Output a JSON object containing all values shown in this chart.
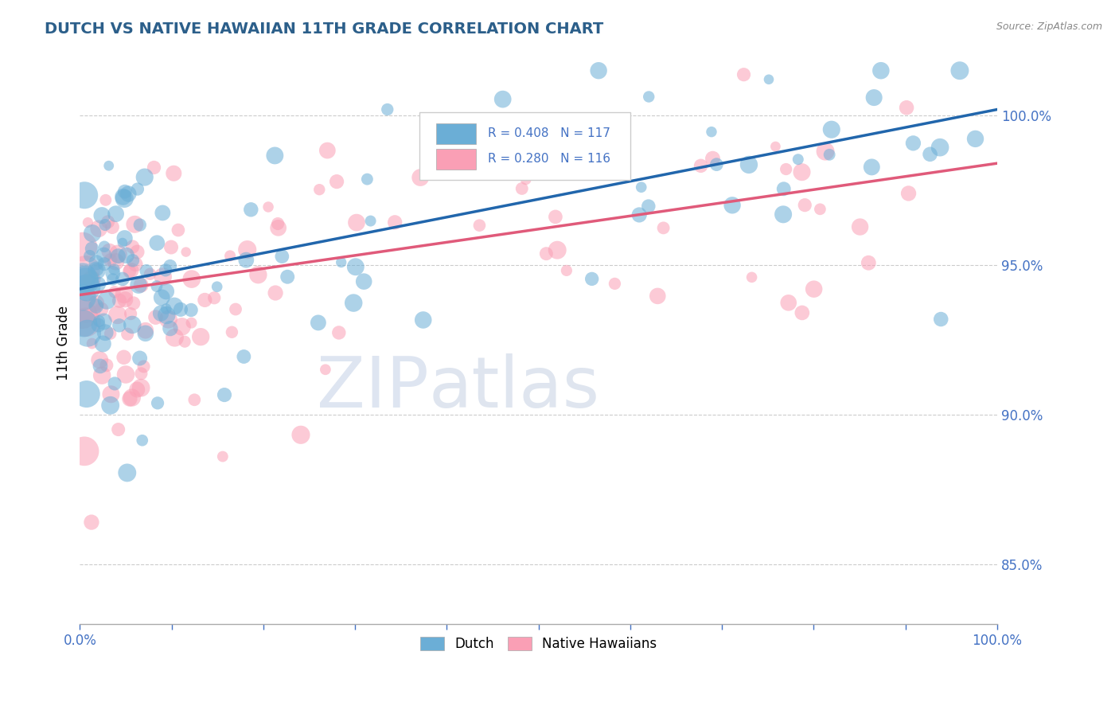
{
  "title": "DUTCH VS NATIVE HAWAIIAN 11TH GRADE CORRELATION CHART",
  "source": "Source: ZipAtlas.com",
  "ylabel": "11th Grade",
  "xlim": [
    0.0,
    100.0
  ],
  "ylim": [
    83.0,
    101.8
  ],
  "yticks": [
    85.0,
    90.0,
    95.0,
    100.0
  ],
  "blue_R": 0.408,
  "blue_N": 117,
  "pink_R": 0.28,
  "pink_N": 116,
  "blue_color": "#6baed6",
  "pink_color": "#fa9fb5",
  "blue_line_color": "#2166ac",
  "pink_line_color": "#e05a7a",
  "legend_blue_label": "Dutch",
  "legend_pink_label": "Native Hawaiians",
  "title_color": "#2c5f8a",
  "axis_color": "#4472c4",
  "blue_trend_x0": 0,
  "blue_trend_y0": 94.2,
  "blue_trend_x1": 100,
  "blue_trend_y1": 100.2,
  "pink_trend_x0": 0,
  "pink_trend_y0": 94.0,
  "pink_trend_x1": 100,
  "pink_trend_y1": 98.4
}
